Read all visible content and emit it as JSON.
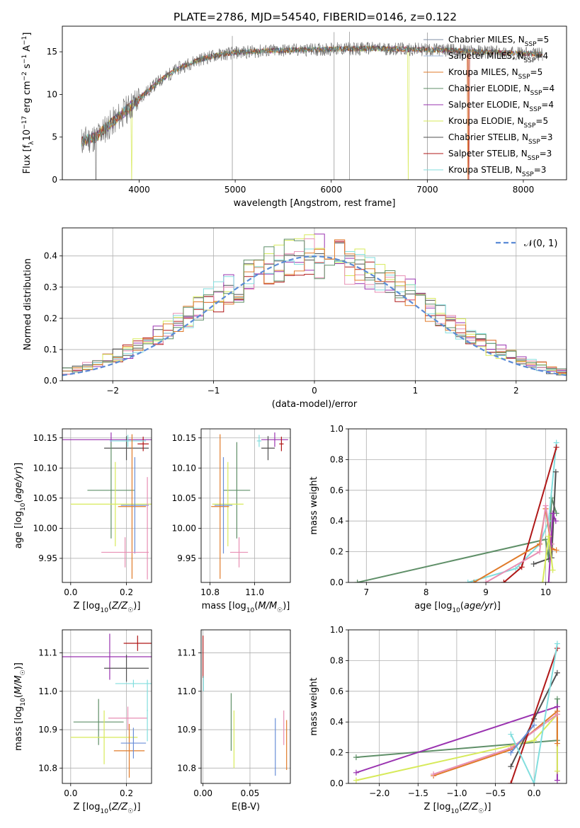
{
  "figure": {
    "title": "PLATE=2786, MJD=54540, FIBERID=0146, z=0.122"
  },
  "colors": {
    "chabrier_miles": "#7f8fa6",
    "salpeter_miles": "#9db5d6",
    "kroupa_miles": "#e07b2a",
    "chabrier_elodie": "#5f8f68",
    "salpeter_elodie": "#9a33b0",
    "kroupa_elodie": "#d7ea5a",
    "chabrier_stelib": "#505050",
    "salpeter_stelib": "#b01818",
    "kroupa_stelib": "#82dede",
    "pink": "#e88fb4",
    "blue": "#6a8fd8",
    "normal_curve": "#5b8bd6"
  },
  "chart_data": [
    {
      "id": "spectrum",
      "type": "line",
      "xlabel": "wavelength [Angstrom, rest frame]",
      "ylabel": "Flux [f_λ10^-17 erg cm^-2 s^-1 A^-1]",
      "xlim": [
        3200,
        8450
      ],
      "ylim": [
        0,
        18
      ],
      "xticks": [
        4000,
        5000,
        6000,
        7000,
        8000
      ],
      "yticks": [
        0,
        5,
        10,
        15
      ],
      "grid": false,
      "legend_position": "right",
      "legend": [
        {
          "main": "Chabrier MILES, N",
          "sub": "SSP",
          "tail": "=5",
          "color_key": "chabrier_miles"
        },
        {
          "main": "Salpeter MILES, N",
          "sub": "SSP",
          "tail": "=4",
          "color_key": "salpeter_miles"
        },
        {
          "main": "Kroupa MILES, N",
          "sub": "SSP",
          "tail": "=5",
          "color_key": "kroupa_miles"
        },
        {
          "main": "Chabrier ELODIE, N",
          "sub": "SSP",
          "tail": "=4",
          "color_key": "chabrier_elodie"
        },
        {
          "main": "Salpeter ELODIE, N",
          "sub": "SSP",
          "tail": "=4",
          "color_key": "salpeter_elodie"
        },
        {
          "main": "Kroupa ELODIE, N",
          "sub": "SSP",
          "tail": "=5",
          "color_key": "kroupa_elodie"
        },
        {
          "main": "Chabrier STELIB, N",
          "sub": "SSP",
          "tail": "=3",
          "color_key": "chabrier_stelib"
        },
        {
          "main": "Salpeter STELIB, N",
          "sub": "SSP",
          "tail": "=3",
          "color_key": "salpeter_stelib"
        },
        {
          "main": "Kroupa STELIB, N",
          "sub": "SSP",
          "tail": "=3",
          "color_key": "kroupa_stelib"
        }
      ],
      "continuum": {
        "x": [
          3400,
          3550,
          3700,
          3850,
          4000,
          4200,
          4400,
          4600,
          4800,
          5000,
          5300,
          5600,
          6000,
          6400,
          6800,
          7200,
          7600,
          8000,
          8200
        ],
        "y": [
          4.5,
          5.0,
          6.5,
          8.0,
          9.5,
          11.5,
          13.0,
          14.0,
          14.6,
          14.9,
          15.1,
          15.2,
          15.3,
          15.4,
          15.3,
          15.2,
          15.0,
          14.8,
          14.7
        ]
      },
      "drops": [
        {
          "x": 3550,
          "series": "chabrier_stelib"
        },
        {
          "x": 3920,
          "series": "kroupa_elodie"
        },
        {
          "x": 6800,
          "series": "kroupa_elodie"
        },
        {
          "x": 7420,
          "series": "kroupa_miles"
        },
        {
          "x": 7430,
          "series": "salpeter_stelib"
        }
      ],
      "spikes": [
        4970,
        6030,
        6190,
        7000
      ]
    },
    {
      "id": "residuals",
      "type": "bar",
      "xlabel": "(data-model)/error",
      "ylabel": "Normed distribution",
      "xlim": [
        -2.5,
        2.5
      ],
      "ylim": [
        0,
        0.49
      ],
      "xticks": [
        -2,
        -1,
        0,
        1,
        2
      ],
      "yticks": [
        0.0,
        0.1,
        0.2,
        0.3,
        0.4
      ],
      "grid": true,
      "legend_position": "top-right",
      "legend": [
        {
          "label": "𝒩(0, 1)",
          "color_key": "normal_curve"
        }
      ],
      "bin_edges_range": [
        -2.5,
        2.5
      ],
      "bins": 50,
      "series": [
        {
          "color_key": "chabrier_stelib",
          "seed": 1
        },
        {
          "color_key": "salpeter_elodie",
          "seed": 2
        },
        {
          "color_key": "salpeter_stelib",
          "seed": 3
        },
        {
          "color_key": "kroupa_elodie",
          "seed": 4
        },
        {
          "color_key": "pink",
          "seed": 5
        },
        {
          "color_key": "kroupa_stelib",
          "seed": 6
        },
        {
          "color_key": "kroupa_miles",
          "seed": 7
        },
        {
          "color_key": "chabrier_elodie",
          "seed": 8
        }
      ]
    },
    {
      "id": "age-vs-z",
      "type": "scatter",
      "xlabel": "Z [log10(Z/Z☉)]",
      "ylabel": "age [log10(age/yr)]",
      "xlim": [
        -0.03,
        0.29
      ],
      "ylim": [
        9.91,
        10.165
      ],
      "xticks": [
        0.0,
        0.2
      ],
      "yticks": [
        9.95,
        10.0,
        10.05,
        10.1,
        10.15
      ],
      "grid": true,
      "points": [
        {
          "x": 0.145,
          "y": 10.147,
          "xerr": 0.18,
          "yerr": 0.012,
          "color_key": "salpeter_elodie"
        },
        {
          "x": 0.2,
          "y": 10.133,
          "xerr": 0.08,
          "yerr": 0.02,
          "color_key": "chabrier_stelib"
        },
        {
          "x": 0.26,
          "y": 10.14,
          "xerr": 0.02,
          "yerr": 0.012,
          "color_key": "salpeter_stelib"
        },
        {
          "x": 0.205,
          "y": 10.145,
          "xerr": 0.065,
          "yerr": 0.01,
          "color_key": "kroupa_stelib"
        },
        {
          "x": 0.145,
          "y": 10.063,
          "xerr": 0.085,
          "yerr": 0.08,
          "color_key": "chabrier_elodie"
        },
        {
          "x": 0.16,
          "y": 10.04,
          "xerr": 0.16,
          "yerr": 0.07,
          "color_key": "kroupa_elodie"
        },
        {
          "x": 0.22,
          "y": 10.036,
          "xerr": 0.05,
          "yerr": 0.12,
          "color_key": "kroupa_miles"
        },
        {
          "x": 0.23,
          "y": 10.038,
          "xerr": 0.05,
          "yerr": 0.08,
          "color_key": "blue"
        },
        {
          "x": 0.195,
          "y": 9.96,
          "xerr": 0.085,
          "yerr": 0.025,
          "color_key": "pink"
        },
        {
          "x": 0.275,
          "y": 10.0,
          "xerr": 0.002,
          "yerr": 0.085,
          "color_key": "pink"
        }
      ]
    },
    {
      "id": "age-vs-mass",
      "type": "scatter",
      "xlabel": "mass [log10(M/M☉)]",
      "ylabel": "",
      "xlim": [
        10.76,
        11.16
      ],
      "ylim": [
        9.91,
        10.165
      ],
      "xticks": [
        10.8,
        11.0
      ],
      "yticks": [
        9.95,
        10.0,
        10.05,
        10.1,
        10.15
      ],
      "grid": true,
      "points": [
        {
          "x": 11.09,
          "y": 10.147,
          "xerr": 0.06,
          "yerr": 0.012,
          "color_key": "salpeter_elodie"
        },
        {
          "x": 11.06,
          "y": 10.133,
          "xerr": 0.03,
          "yerr": 0.02,
          "color_key": "chabrier_stelib"
        },
        {
          "x": 11.12,
          "y": 10.14,
          "xerr": 0.01,
          "yerr": 0.012,
          "color_key": "salpeter_stelib"
        },
        {
          "x": 11.02,
          "y": 10.145,
          "xerr": 0.01,
          "yerr": 0.01,
          "color_key": "kroupa_stelib"
        },
        {
          "x": 10.92,
          "y": 10.063,
          "xerr": 0.06,
          "yerr": 0.08,
          "color_key": "chabrier_elodie"
        },
        {
          "x": 10.88,
          "y": 10.04,
          "xerr": 0.07,
          "yerr": 0.07,
          "color_key": "kroupa_elodie"
        },
        {
          "x": 10.845,
          "y": 10.036,
          "xerr": 0.04,
          "yerr": 0.12,
          "color_key": "kroupa_miles"
        },
        {
          "x": 10.86,
          "y": 10.038,
          "xerr": 0.04,
          "yerr": 0.08,
          "color_key": "blue"
        },
        {
          "x": 10.93,
          "y": 9.96,
          "xerr": 0.04,
          "yerr": 0.025,
          "color_key": "pink"
        }
      ]
    },
    {
      "id": "massweight-vs-age",
      "type": "line",
      "xlabel": "age [log10(age/yr)]",
      "ylabel": "mass weight",
      "xlim": [
        6.7,
        10.35
      ],
      "ylim": [
        0,
        1.0
      ],
      "xticks": [
        7,
        8,
        9,
        10
      ],
      "yticks": [
        0.0,
        0.2,
        0.4,
        0.6,
        0.8,
        1.0
      ],
      "grid": true,
      "series": [
        {
          "color_key": "chabrier_elodie",
          "points": [
            [
              6.85,
              0.0
            ],
            [
              10.0,
              0.28
            ],
            [
              10.05,
              0.15
            ],
            [
              10.1,
              0.55
            ],
            [
              10.18,
              0.45
            ]
          ]
        },
        {
          "color_key": "kroupa_stelib",
          "points": [
            [
              8.7,
              0.0
            ],
            [
              9.5,
              0.09
            ],
            [
              9.9,
              0.25
            ],
            [
              10.05,
              0.4
            ],
            [
              10.18,
              0.91
            ]
          ]
        },
        {
          "color_key": "salpeter_stelib",
          "points": [
            [
              9.3,
              0.0
            ],
            [
              9.6,
              0.1
            ],
            [
              10.18,
              0.88
            ]
          ]
        },
        {
          "color_key": "chabrier_stelib",
          "points": [
            [
              9.8,
              0.12
            ],
            [
              10.1,
              0.16
            ],
            [
              10.17,
              0.72
            ]
          ]
        },
        {
          "color_key": "kroupa_miles",
          "points": [
            [
              8.8,
              0.0
            ],
            [
              9.9,
              0.25
            ],
            [
              10.0,
              0.48
            ],
            [
              10.1,
              0.22
            ],
            [
              10.18,
              0.21
            ]
          ]
        },
        {
          "color_key": "pink",
          "points": [
            [
              9.0,
              0.0
            ],
            [
              9.9,
              0.2
            ],
            [
              10.0,
              0.5
            ],
            [
              10.1,
              0.25
            ]
          ]
        },
        {
          "color_key": "salpeter_elodie",
          "points": [
            [
              10.05,
              0.0
            ],
            [
              10.12,
              0.45
            ],
            [
              10.17,
              0.4
            ]
          ]
        },
        {
          "color_key": "kroupa_elodie",
          "points": [
            [
              9.95,
              0.0
            ],
            [
              10.05,
              0.3
            ],
            [
              10.12,
              0.08
            ]
          ]
        }
      ]
    },
    {
      "id": "mass-vs-z",
      "type": "scatter",
      "xlabel": "Z [log10(Z/Z☉)]",
      "ylabel": "mass [log10(M/M☉)]",
      "xlim": [
        -0.03,
        0.29
      ],
      "ylim": [
        10.76,
        11.16
      ],
      "xticks": [
        0.0,
        0.2
      ],
      "yticks": [
        10.8,
        10.9,
        11.0,
        11.1
      ],
      "grid": true,
      "points": [
        {
          "x": 0.14,
          "y": 11.09,
          "xerr": 0.17,
          "yerr": 0.06,
          "color_key": "salpeter_elodie"
        },
        {
          "x": 0.24,
          "y": 11.125,
          "xerr": 0.05,
          "yerr": 0.02,
          "color_key": "salpeter_stelib"
        },
        {
          "x": 0.2,
          "y": 11.06,
          "xerr": 0.08,
          "yerr": 0.035,
          "color_key": "chabrier_stelib"
        },
        {
          "x": 0.225,
          "y": 11.02,
          "xerr": 0.065,
          "yerr": 0.01,
          "color_key": "kroupa_stelib"
        },
        {
          "x": 0.1,
          "y": 10.92,
          "xerr": 0.09,
          "yerr": 0.06,
          "color_key": "chabrier_elodie"
        },
        {
          "x": 0.12,
          "y": 10.88,
          "xerr": 0.12,
          "yerr": 0.07,
          "color_key": "kroupa_elodie"
        },
        {
          "x": 0.21,
          "y": 10.845,
          "xerr": 0.055,
          "yerr": 0.07,
          "color_key": "kroupa_miles"
        },
        {
          "x": 0.225,
          "y": 10.865,
          "xerr": 0.045,
          "yerr": 0.04,
          "color_key": "blue"
        },
        {
          "x": 0.205,
          "y": 10.93,
          "xerr": 0.07,
          "yerr": 0.03,
          "color_key": "pink"
        },
        {
          "x": 0.275,
          "y": 10.95,
          "xerr": 0.002,
          "yerr": 0.08,
          "color_key": "kroupa_stelib"
        }
      ]
    },
    {
      "id": "mass-vs-ebv",
      "type": "scatter",
      "xlabel": "E(B-V)",
      "ylabel": "",
      "xlim": [
        -0.002,
        0.093
      ],
      "ylim": [
        10.76,
        11.16
      ],
      "xticks": [
        0.0,
        0.05
      ],
      "yticks": [
        10.8,
        10.9,
        11.0,
        11.1
      ],
      "grid": true,
      "points": [
        {
          "x": 0.0,
          "y": 11.09,
          "xerr": 0.0,
          "yerr": 0.055,
          "color_key": "salpeter_stelib"
        },
        {
          "x": 0.0005,
          "y": 11.02,
          "xerr": 0.0,
          "yerr": 0.02,
          "color_key": "kroupa_stelib"
        },
        {
          "x": 0.03,
          "y": 10.92,
          "xerr": 0.0,
          "yerr": 0.075,
          "color_key": "chabrier_elodie"
        },
        {
          "x": 0.033,
          "y": 10.875,
          "xerr": 0.0,
          "yerr": 0.075,
          "color_key": "kroupa_elodie"
        },
        {
          "x": 0.077,
          "y": 10.855,
          "xerr": 0.0,
          "yerr": 0.075,
          "color_key": "blue"
        },
        {
          "x": 0.086,
          "y": 10.905,
          "xerr": 0.0,
          "yerr": 0.045,
          "color_key": "pink"
        },
        {
          "x": 0.089,
          "y": 10.86,
          "xerr": 0.0,
          "yerr": 0.065,
          "color_key": "kroupa_miles"
        }
      ]
    },
    {
      "id": "massweight-vs-z",
      "type": "line",
      "xlabel": "Z [log10(Z/Z☉)]",
      "ylabel": "mass weight",
      "xlim": [
        -2.4,
        0.42
      ],
      "ylim": [
        0,
        1.0
      ],
      "xticks": [
        -2.0,
        -1.5,
        -1.0,
        -0.5,
        0.0
      ],
      "yticks": [
        0.0,
        0.2,
        0.4,
        0.6,
        0.8,
        1.0
      ],
      "grid": true,
      "series": [
        {
          "color_key": "chabrier_elodie",
          "points": [
            [
              -2.3,
              0.17
            ],
            [
              0.3,
              0.28
            ],
            [
              0.3,
              0.55
            ]
          ]
        },
        {
          "color_key": "salpeter_elodie",
          "points": [
            [
              -2.3,
              0.07
            ],
            [
              0.3,
              0.5
            ],
            [
              0.3,
              0.02
            ]
          ]
        },
        {
          "color_key": "kroupa_elodie",
          "points": [
            [
              -2.3,
              0.02
            ],
            [
              0.0,
              0.28
            ],
            [
              0.3,
              0.45
            ],
            [
              0.3,
              0.08
            ]
          ]
        },
        {
          "color_key": "kroupa_miles",
          "points": [
            [
              -1.3,
              0.05
            ],
            [
              -0.3,
              0.22
            ],
            [
              0.3,
              0.47
            ],
            [
              0.3,
              0.26
            ]
          ]
        },
        {
          "color_key": "pink",
          "points": [
            [
              -1.3,
              0.06
            ],
            [
              -0.3,
              0.23
            ],
            [
              0.3,
              0.45
            ]
          ]
        },
        {
          "color_key": "chabrier_stelib",
          "points": [
            [
              -0.3,
              0.11
            ],
            [
              0.0,
              0.42
            ],
            [
              0.3,
              0.72
            ]
          ]
        },
        {
          "color_key": "salpeter_stelib",
          "points": [
            [
              -0.3,
              0.0
            ],
            [
              0.3,
              0.88
            ]
          ]
        },
        {
          "color_key": "kroupa_stelib",
          "points": [
            [
              -0.3,
              0.32
            ],
            [
              0.0,
              0.0
            ],
            [
              0.3,
              0.91
            ]
          ]
        },
        {
          "color_key": "blue",
          "points": [
            [
              -0.3,
              0.2
            ],
            [
              0.0,
              0.38
            ]
          ]
        }
      ]
    }
  ]
}
